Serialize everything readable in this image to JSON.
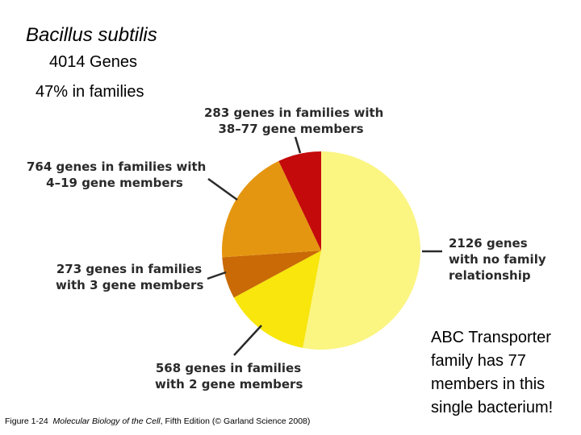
{
  "header": {
    "organism": "Bacillus subtilis",
    "genes": "4014 Genes",
    "families": "47% in families"
  },
  "chart_data": {
    "type": "pie",
    "title": "",
    "slices": [
      {
        "label": [
          "2126 genes",
          "with no family",
          "relationship"
        ],
        "value": 2126,
        "color": "#fbf582"
      },
      {
        "label": [
          "568 genes in families",
          "with 2 gene members"
        ],
        "value": 568,
        "color": "#f8e60c"
      },
      {
        "label": [
          "273 genes in families",
          "with 3 gene members"
        ],
        "value": 273,
        "color": "#c96a06"
      },
      {
        "label": [
          "764 genes in families with",
          "4–19 gene members"
        ],
        "value": 764,
        "color": "#e59610"
      },
      {
        "label": [
          "283 genes in families with",
          "38–77 gene members"
        ],
        "value": 283,
        "color": "#c40a0a"
      }
    ]
  },
  "note": {
    "lines": [
      "ABC Transporter",
      "family has 77",
      "members in this",
      "single bacterium!"
    ]
  },
  "caption": {
    "prefix": "Figure 1-24",
    "book": "Molecular Biology of the Cell",
    "suffix": ", Fifth Edition (© Garland Science 2008)"
  }
}
